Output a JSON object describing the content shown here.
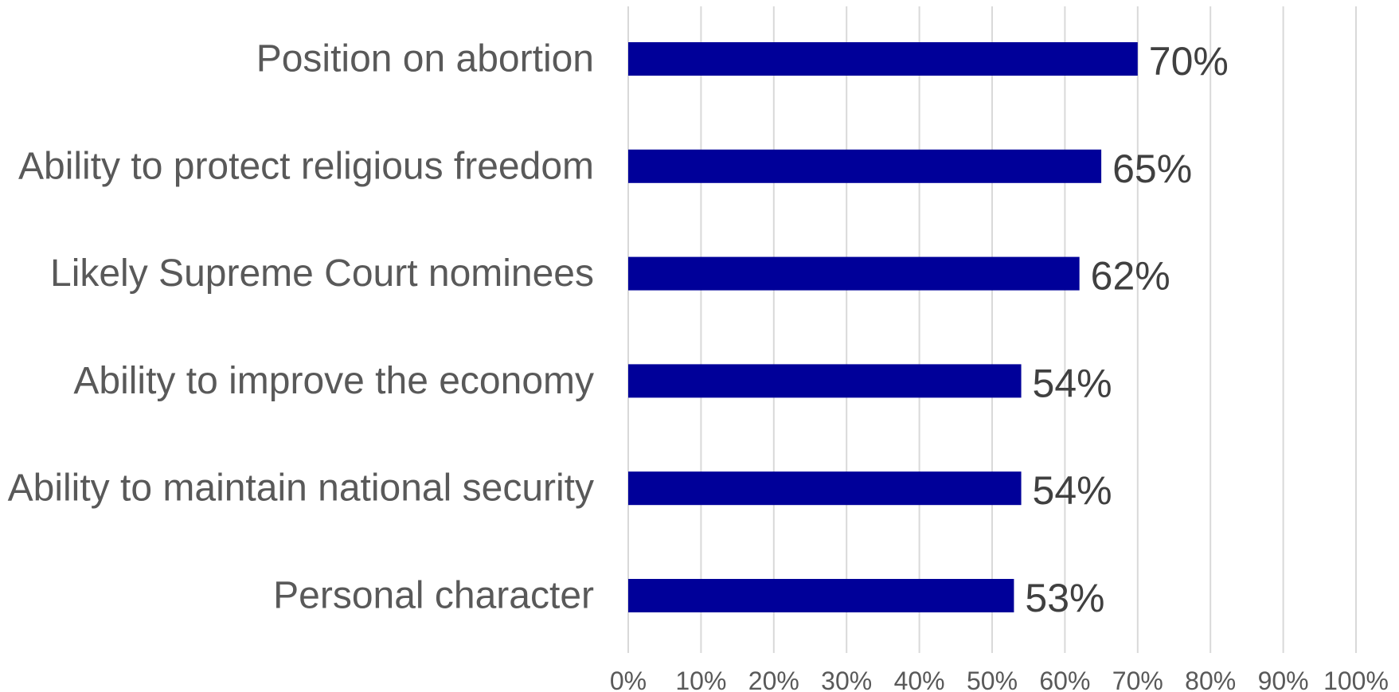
{
  "chart_data": {
    "type": "bar",
    "orientation": "horizontal",
    "categories": [
      "Position on abortion",
      "Ability to protect religious freedom",
      "Likely Supreme Court nominees",
      "Ability to improve the economy",
      "Ability to maintain national security",
      "Personal character"
    ],
    "values": [
      70,
      65,
      62,
      54,
      54,
      53
    ],
    "value_labels": [
      "70%",
      "65%",
      "62%",
      "54%",
      "54%",
      "53%"
    ],
    "xlim": [
      0,
      100
    ],
    "x_ticks": [
      0,
      10,
      20,
      30,
      40,
      50,
      60,
      70,
      80,
      90,
      100
    ],
    "x_tick_labels": [
      "0%",
      "10%",
      "20%",
      "30%",
      "40%",
      "50%",
      "60%",
      "70%",
      "80%",
      "90%",
      "100%"
    ],
    "grid": "vertical",
    "legend": "none",
    "colors": {
      "bar": "#000099",
      "gridline": "#d9d9d9",
      "category_text": "#595959",
      "value_text": "#404040"
    }
  }
}
